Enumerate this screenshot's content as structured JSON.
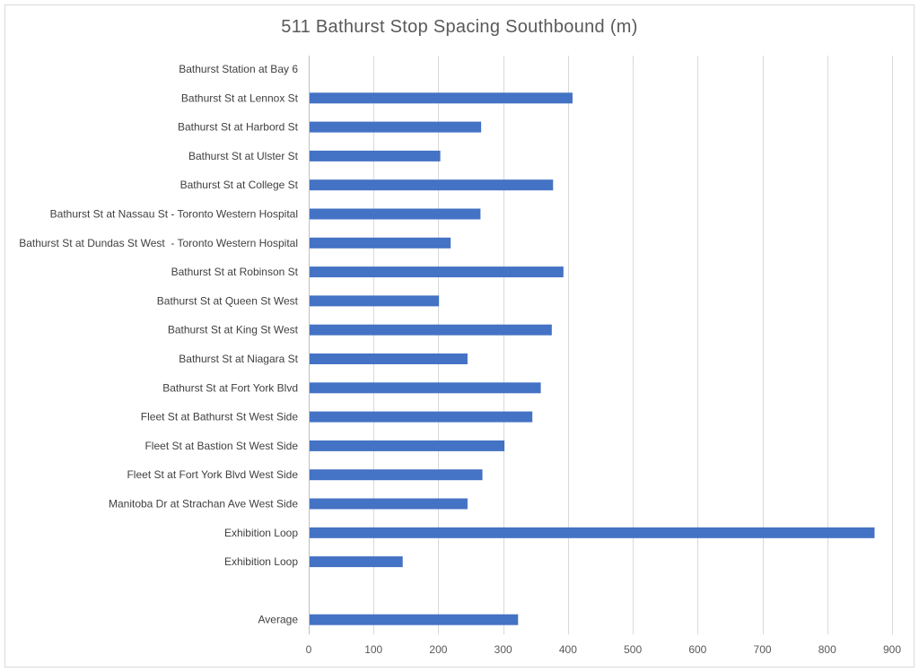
{
  "chart_data": {
    "type": "bar",
    "orientation": "horizontal",
    "title": "511 Bathurst Stop Spacing Southbound (m)",
    "xlabel": "",
    "ylabel": "",
    "xlim": [
      0,
      900
    ],
    "x_ticks": [
      0,
      100,
      200,
      300,
      400,
      500,
      600,
      700,
      800,
      900
    ],
    "grid": "vertical",
    "legend": "none",
    "bar_color": "#4472c4",
    "categories": [
      "Bathurst Station at Bay 6",
      "Bathurst St at Lennox St",
      "Bathurst St at Harbord St",
      "Bathurst St at Ulster St",
      "Bathurst St at College St",
      "Bathurst St at Nassau St - Toronto Western Hospital",
      "Bathurst St at Dundas St West  - Toronto Western Hospital",
      "Bathurst St at Robinson St",
      "Bathurst St at Queen St West",
      "Bathurst St at King St West",
      "Bathurst St at Niagara St",
      "Bathurst St at Fort York Blvd",
      "Fleet St at Bathurst St West Side",
      "Fleet St at Bastion St West Side",
      "Fleet St at Fort York Blvd West Side",
      "Manitoba Dr at Strachan Ave West Side",
      "Exhibition Loop",
      "Exhibition Loop",
      "",
      "Average"
    ],
    "values": [
      0,
      407,
      266,
      203,
      377,
      265,
      219,
      393,
      201,
      375,
      245,
      358,
      345,
      302,
      268,
      245,
      873,
      145,
      null,
      323
    ]
  }
}
